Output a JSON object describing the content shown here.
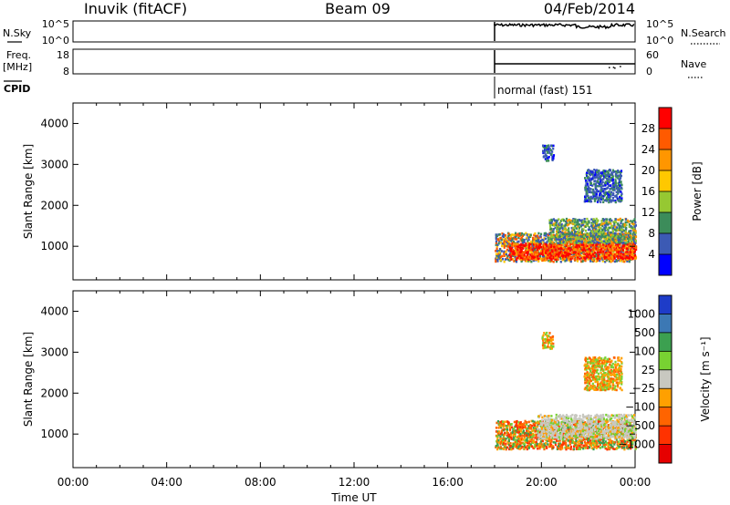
{
  "header": {
    "station": "Inuvik  (fitACF)",
    "beam": "Beam 09",
    "date": "04/Feb/2014"
  },
  "params": {
    "nsky_label": "N.Sky",
    "nsky_ticks": [
      "10^5",
      "10^0"
    ],
    "nsearch_label": "N.Search",
    "nsearch_ticks": [
      "10^5",
      "10^0"
    ],
    "freq_label": "Freq.",
    "freq_unit": "[MHz]",
    "freq_ticks": [
      "18",
      "8"
    ],
    "nave_label": "Nave",
    "nave_ticks": [
      "60",
      "0"
    ],
    "cpid_label": "CPID",
    "cpid_value": "normal (fast) 151",
    "data_start_hour": 18
  },
  "chart_data": [
    {
      "type": "heatmap",
      "name": "power",
      "ylabel": "Slant Range [km]",
      "yticks": [
        "4000",
        "3000",
        "2000",
        "1000"
      ],
      "ylim": [
        180,
        4500
      ],
      "xlim": [
        0,
        24
      ],
      "colorbar": {
        "label": "Power [dB]",
        "ticks": [
          "28",
          "24",
          "20",
          "16",
          "12",
          "8",
          "4"
        ],
        "colors": [
          "#ff0000",
          "#ff5a00",
          "#ff9600",
          "#ffc800",
          "#96c832",
          "#3c8c5a",
          "#3c5ab4",
          "#0000ff"
        ]
      },
      "regions": [
        {
          "t0": 18.0,
          "t1": 24.0,
          "r0": 650,
          "r1": 1350,
          "level": "strong"
        },
        {
          "t0": 18.6,
          "t1": 24.0,
          "r0": 700,
          "r1": 1100,
          "level": "peak"
        },
        {
          "t0": 20.3,
          "t1": 24.0,
          "r0": 1100,
          "r1": 1700,
          "level": "medium"
        },
        {
          "t0": 21.8,
          "t1": 23.4,
          "r0": 2100,
          "r1": 2900,
          "level": "weak"
        },
        {
          "t0": 20.0,
          "t1": 20.5,
          "r0": 3100,
          "r1": 3500,
          "level": "weak"
        }
      ]
    },
    {
      "type": "heatmap",
      "name": "velocity",
      "ylabel": "Slant Range [km]",
      "yticks": [
        "4000",
        "3000",
        "2000",
        "1000"
      ],
      "ylim": [
        180,
        4500
      ],
      "xlim": [
        0,
        24
      ],
      "colorbar": {
        "label": "Velocity [m s⁻¹]",
        "ticks": [
          "1000",
          "500",
          "100",
          "25",
          "−25",
          "−100",
          "−500",
          "−1000"
        ],
        "colors": [
          "#1e3cc8",
          "#3c78b4",
          "#3ca050",
          "#78d232",
          "#c8c8c0",
          "#ffa000",
          "#ff6400",
          "#ff3200",
          "#e60000"
        ]
      },
      "xticks": [
        "00:00",
        "04:00",
        "08:00",
        "12:00",
        "16:00",
        "20:00",
        "00:00"
      ],
      "xlabel": "Time UT",
      "regions": [
        {
          "t0": 18.0,
          "t1": 24.0,
          "r0": 650,
          "r1": 1350,
          "level": "mixed-low"
        },
        {
          "t0": 19.8,
          "t1": 24.0,
          "r0": 900,
          "r1": 1500,
          "level": "slow"
        },
        {
          "t0": 21.8,
          "t1": 23.4,
          "r0": 2100,
          "r1": 2900,
          "level": "away"
        },
        {
          "t0": 20.0,
          "t1": 20.5,
          "r0": 3100,
          "r1": 3500,
          "level": "away"
        }
      ]
    }
  ]
}
